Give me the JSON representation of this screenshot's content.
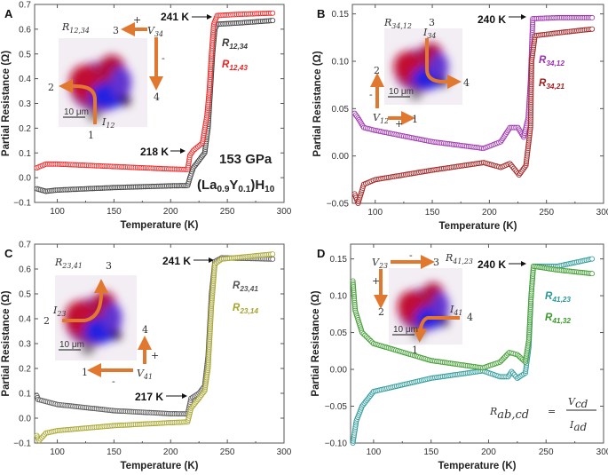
{
  "colors": {
    "black": "#3a3a3a",
    "red": "#ee2222",
    "purple": "#9b2fae",
    "darkred": "#9e1b1b",
    "gray": "#555555",
    "olive": "#a6a42a",
    "teal": "#2a9898",
    "green": "#3c9a2c",
    "arrow": "#e0782f"
  },
  "chart_data": [
    {
      "type": "scatter",
      "panel": "A",
      "xlabel": "Temperature (K)",
      "ylabel": "Partial Resistance (Ω)",
      "xlim": [
        80,
        300
      ],
      "ylim": [
        -0.1,
        0.7
      ],
      "xticks": [
        100,
        150,
        200,
        250,
        300
      ],
      "yticks": [
        -0.1,
        0.0,
        0.1,
        0.2,
        0.3,
        0.4,
        0.5,
        0.6,
        0.7
      ],
      "ytick_labels": [
        "−0.1",
        "0.0",
        "0.1",
        "0.2",
        "0.3",
        "0.4",
        "0.5",
        "0.6",
        "0.7"
      ],
      "series": [
        {
          "name": "R12,34",
          "label": {
            "base": "R",
            "sub": "12,34"
          },
          "color": "#3a3a3a",
          "points": [
            [
              82,
              -0.045
            ],
            [
              90,
              -0.055
            ],
            [
              100,
              -0.05
            ],
            [
              150,
              -0.04
            ],
            [
              200,
              -0.033
            ],
            [
              215,
              -0.032
            ],
            [
              217,
              0.0
            ],
            [
              220,
              0.04
            ],
            [
              225,
              0.07
            ],
            [
              230,
              0.1
            ],
            [
              233,
              0.2
            ],
            [
              235,
              0.35
            ],
            [
              237,
              0.5
            ],
            [
              239,
              0.6
            ],
            [
              241,
              0.62
            ],
            [
              260,
              0.625
            ],
            [
              290,
              0.635
            ]
          ]
        },
        {
          "name": "R12,43",
          "label": {
            "base": "R",
            "sub": "12,43"
          },
          "color": "#ee2222",
          "points": [
            [
              82,
              0.04
            ],
            [
              90,
              0.055
            ],
            [
              100,
              0.055
            ],
            [
              150,
              0.045
            ],
            [
              200,
              0.035
            ],
            [
              215,
              0.033
            ],
            [
              217,
              0.09
            ],
            [
              220,
              0.11
            ],
            [
              228,
              0.14
            ],
            [
              232,
              0.25
            ],
            [
              234,
              0.35
            ],
            [
              236,
              0.5
            ],
            [
              238,
              0.62
            ],
            [
              241,
              0.655
            ],
            [
              260,
              0.66
            ],
            [
              290,
              0.665
            ]
          ]
        }
      ],
      "annotations": {
        "letter": "A",
        "tc_high": "241 K",
        "tc_low": "218 K",
        "pressure": "153 GPa",
        "compound": {
          "a": "(La",
          "s1": "0.9",
          "b": "Y",
          "s2": "0.1",
          "c": ")H",
          "s3": "10"
        }
      },
      "inset": {
        "title": {
          "base": "R",
          "sub": "12,34"
        },
        "voltage": {
          "base": "V",
          "sub": "34"
        },
        "current": {
          "base": "I",
          "sub": "12"
        },
        "n1": "1",
        "n2": "2",
        "n3": "3",
        "n4": "4",
        "plus": "+",
        "minus": "-",
        "scale": "10 μm"
      }
    },
    {
      "type": "scatter",
      "panel": "B",
      "xlabel": "Temperature (K)",
      "ylabel": "Partial Resistance (Ω)",
      "xlim": [
        80,
        300
      ],
      "ylim": [
        -0.05,
        0.16
      ],
      "xticks": [
        100,
        150,
        200,
        250,
        300
      ],
      "yticks": [
        -0.05,
        0.0,
        0.05,
        0.1,
        0.15
      ],
      "ytick_labels": [
        "−0.05",
        "0.00",
        "0.05",
        "0.10",
        "0.15"
      ],
      "series": [
        {
          "name": "R34,12",
          "label": {
            "base": "R",
            "sub": "34,12"
          },
          "color": "#9b2fae",
          "points": [
            [
              82,
              0.045
            ],
            [
              85,
              0.04
            ],
            [
              90,
              0.03
            ],
            [
              100,
              0.027
            ],
            [
              150,
              0.015
            ],
            [
              195,
              0.008
            ],
            [
              210,
              0.015
            ],
            [
              218,
              0.03
            ],
            [
              225,
              0.03
            ],
            [
              230,
              0.02
            ],
            [
              234,
              0.04
            ],
            [
              236,
              0.08
            ],
            [
              238,
              0.145
            ],
            [
              260,
              0.146
            ],
            [
              290,
              0.146
            ]
          ]
        },
        {
          "name": "R34,21",
          "label": {
            "base": "R",
            "sub": "34,21"
          },
          "color": "#9e1b1b",
          "points": [
            [
              82,
              -0.04
            ],
            [
              85,
              -0.05
            ],
            [
              90,
              -0.03
            ],
            [
              100,
              -0.025
            ],
            [
              150,
              -0.015
            ],
            [
              195,
              -0.007
            ],
            [
              210,
              -0.012
            ],
            [
              218,
              -0.008
            ],
            [
              226,
              -0.02
            ],
            [
              232,
              -0.01
            ],
            [
              236,
              0.03
            ],
            [
              237,
              0.1
            ],
            [
              240,
              0.127
            ],
            [
              260,
              0.13
            ],
            [
              290,
              0.134
            ]
          ]
        }
      ],
      "annotations": {
        "letter": "B",
        "tc_high": "240 K"
      },
      "inset": {
        "title": {
          "base": "R",
          "sub": "34,12"
        },
        "voltage": {
          "base": "V",
          "sub": "12"
        },
        "current": {
          "base": "I",
          "sub": "34"
        },
        "n1": "1",
        "n2": "2",
        "n3": "3",
        "n4": "4",
        "plus": "+",
        "minus": "-",
        "scale": "10 μm"
      }
    },
    {
      "type": "scatter",
      "panel": "C",
      "xlabel": "Temperature (K)",
      "ylabel": "Partial Resistance (Ω)",
      "xlim": [
        80,
        300
      ],
      "ylim": [
        -0.1,
        0.7
      ],
      "xticks": [
        100,
        150,
        200,
        250,
        300
      ],
      "yticks": [
        -0.1,
        0.0,
        0.1,
        0.2,
        0.3,
        0.4,
        0.5,
        0.6,
        0.7
      ],
      "ytick_labels": [
        "−0.1",
        "0.0",
        "0.1",
        "0.2",
        "0.3",
        "0.4",
        "0.5",
        "0.6",
        "0.7"
      ],
      "series": [
        {
          "name": "R23,41",
          "label": {
            "base": "R",
            "sub": "23,41"
          },
          "color": "#555555",
          "points": [
            [
              82,
              0.09
            ],
            [
              83,
              0.075
            ],
            [
              100,
              0.055
            ],
            [
              150,
              0.03
            ],
            [
              200,
              0.018
            ],
            [
              215,
              0.017
            ],
            [
              218,
              0.08
            ],
            [
              225,
              0.1
            ],
            [
              230,
              0.13
            ],
            [
              233,
              0.25
            ],
            [
              236,
              0.5
            ],
            [
              239,
              0.63
            ],
            [
              245,
              0.645
            ],
            [
              290,
              0.64
            ]
          ]
        },
        {
          "name": "R23,14",
          "label": {
            "base": "R",
            "sub": "23,14"
          },
          "color": "#a6a42a",
          "points": [
            [
              82,
              -0.07
            ],
            [
              84,
              -0.09
            ],
            [
              90,
              -0.06
            ],
            [
              100,
              -0.05
            ],
            [
              150,
              -0.03
            ],
            [
              200,
              -0.018
            ],
            [
              215,
              -0.015
            ],
            [
              218,
              0.04
            ],
            [
              225,
              0.08
            ],
            [
              230,
              0.11
            ],
            [
              233,
              0.2
            ],
            [
              236,
              0.45
            ],
            [
              239,
              0.62
            ],
            [
              245,
              0.64
            ],
            [
              290,
              0.66
            ]
          ]
        }
      ],
      "annotations": {
        "letter": "C",
        "tc_high": "241 K",
        "tc_low": "217 K"
      },
      "inset": {
        "title": {
          "base": "R",
          "sub": "23,41"
        },
        "voltage": {
          "base": "V",
          "sub": "41"
        },
        "current": {
          "base": "I",
          "sub": "23"
        },
        "n1": "1",
        "n2": "2",
        "n3": "3",
        "n4": "4",
        "plus": "+",
        "minus": "-",
        "scale": "10 μm"
      }
    },
    {
      "type": "scatter",
      "panel": "D",
      "xlabel": "Temperature (K)",
      "ylabel": "Partial Resistance (Ω)",
      "xlim": [
        80,
        300
      ],
      "ylim": [
        -0.1,
        0.17
      ],
      "xticks": [
        100,
        150,
        200,
        250,
        300
      ],
      "yticks": [
        -0.1,
        -0.05,
        0.0,
        0.05,
        0.1,
        0.15
      ],
      "ytick_labels": [
        "−0.10",
        "−0.05",
        "0.00",
        "0.05",
        "0.10",
        "0.15"
      ],
      "series": [
        {
          "name": "R41,23",
          "label": {
            "base": "R",
            "sub": "41,23"
          },
          "color": "#2a9898",
          "points": [
            [
              82,
              -0.1
            ],
            [
              85,
              -0.07
            ],
            [
              90,
              -0.05
            ],
            [
              100,
              -0.03
            ],
            [
              150,
              -0.012
            ],
            [
              195,
              -0.002
            ],
            [
              210,
              -0.01
            ],
            [
              217,
              -0.01
            ],
            [
              220,
              -0.003
            ],
            [
              225,
              -0.012
            ],
            [
              232,
              -0.005
            ],
            [
              235,
              0.03
            ],
            [
              237,
              0.1
            ],
            [
              239,
              0.14
            ],
            [
              260,
              0.14
            ],
            [
              290,
              0.15
            ]
          ]
        },
        {
          "name": "R41,32",
          "label": {
            "base": "R",
            "sub": "41,32"
          },
          "color": "#3c9a2c",
          "points": [
            [
              82,
              0.12
            ],
            [
              84,
              0.08
            ],
            [
              90,
              0.05
            ],
            [
              100,
              0.035
            ],
            [
              150,
              0.012
            ],
            [
              195,
              0.002
            ],
            [
              210,
              0.01
            ],
            [
              218,
              0.023
            ],
            [
              225,
              0.02
            ],
            [
              232,
              0.01
            ],
            [
              235,
              0.04
            ],
            [
              237,
              0.1
            ],
            [
              239,
              0.14
            ],
            [
              260,
              0.135
            ],
            [
              290,
              0.13
            ]
          ]
        }
      ],
      "annotations": {
        "letter": "D",
        "tc_high": "240 K",
        "formula": {
          "lhs": "R",
          "lhs_sub": "ab,cd",
          "eq": "=",
          "num": "V",
          "num_sub": "cd",
          "den": "I",
          "den_sub": "ad"
        }
      },
      "inset": {
        "title": {
          "base": "R",
          "sub": "41,23"
        },
        "voltage": {
          "base": "V",
          "sub": "23"
        },
        "current": {
          "base": "I",
          "sub": "41"
        },
        "n1": "1",
        "n2": "2",
        "n3": "3",
        "n4": "4",
        "plus": "+",
        "minus": "-",
        "scale": "10 μm"
      }
    }
  ]
}
